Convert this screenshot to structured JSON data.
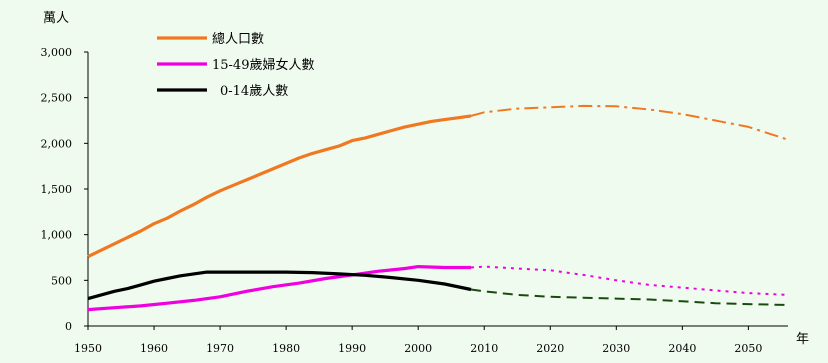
{
  "chart_data": {
    "type": "line",
    "ylabel": "萬人",
    "xlabel": "年",
    "xlim": [
      1950,
      2056
    ],
    "ylim": [
      0,
      3000
    ],
    "x_ticks": [
      "1950",
      "1960",
      "1970",
      "1980",
      "1990",
      "2000",
      "2010",
      "2020",
      "2030",
      "2040",
      "2050"
    ],
    "y_ticks": [
      "0",
      "500",
      "1,000",
      "1,500",
      "2,000",
      "2,500",
      "3,000"
    ],
    "grid": false,
    "legend": "top-left",
    "projection_start": 2008,
    "series": [
      {
        "name": "總人口數",
        "color": "#f07820",
        "projection_dash": "dashdot",
        "x": [
          1950,
          1952,
          1954,
          1956,
          1958,
          1960,
          1962,
          1964,
          1966,
          1968,
          1970,
          1972,
          1974,
          1976,
          1978,
          1980,
          1982,
          1984,
          1986,
          1988,
          1990,
          1992,
          1994,
          1996,
          1998,
          2000,
          2002,
          2004,
          2006,
          2008,
          2010,
          2015,
          2020,
          2025,
          2030,
          2035,
          2040,
          2045,
          2050,
          2056
        ],
        "values": [
          760,
          830,
          900,
          970,
          1040,
          1120,
          1180,
          1260,
          1330,
          1410,
          1480,
          1540,
          1600,
          1660,
          1720,
          1780,
          1840,
          1890,
          1930,
          1970,
          2030,
          2060,
          2100,
          2140,
          2180,
          2210,
          2240,
          2260,
          2280,
          2300,
          2340,
          2380,
          2395,
          2410,
          2405,
          2370,
          2320,
          2250,
          2180,
          2040
        ]
      },
      {
        "name": "15-49歲婦女人數",
        "color": "#f000e0",
        "projection_dash": "dot",
        "x": [
          1950,
          1954,
          1958,
          1962,
          1966,
          1970,
          1974,
          1978,
          1982,
          1986,
          1990,
          1994,
          1998,
          2000,
          2004,
          2008,
          2010,
          2015,
          2020,
          2025,
          2030,
          2035,
          2040,
          2045,
          2050,
          2056
        ],
        "values": [
          180,
          200,
          220,
          250,
          280,
          320,
          380,
          430,
          470,
          520,
          560,
          600,
          630,
          650,
          640,
          640,
          650,
          630,
          610,
          560,
          500,
          450,
          420,
          390,
          360,
          340
        ]
      },
      {
        "name": "0-14歲人數",
        "color": "#000000",
        "projection_color": "#1a4a10",
        "projection_dash": "dash",
        "x": [
          1950,
          1952,
          1954,
          1956,
          1958,
          1960,
          1962,
          1964,
          1966,
          1968,
          1972,
          1976,
          1980,
          1984,
          1988,
          1992,
          1996,
          2000,
          2004,
          2008,
          2010,
          2015,
          2020,
          2025,
          2030,
          2035,
          2040,
          2045,
          2050,
          2056
        ],
        "values": [
          300,
          340,
          380,
          410,
          450,
          490,
          520,
          550,
          570,
          590,
          590,
          590,
          590,
          585,
          570,
          555,
          530,
          500,
          460,
          400,
          380,
          340,
          320,
          310,
          300,
          290,
          270,
          250,
          240,
          230
        ]
      }
    ]
  }
}
